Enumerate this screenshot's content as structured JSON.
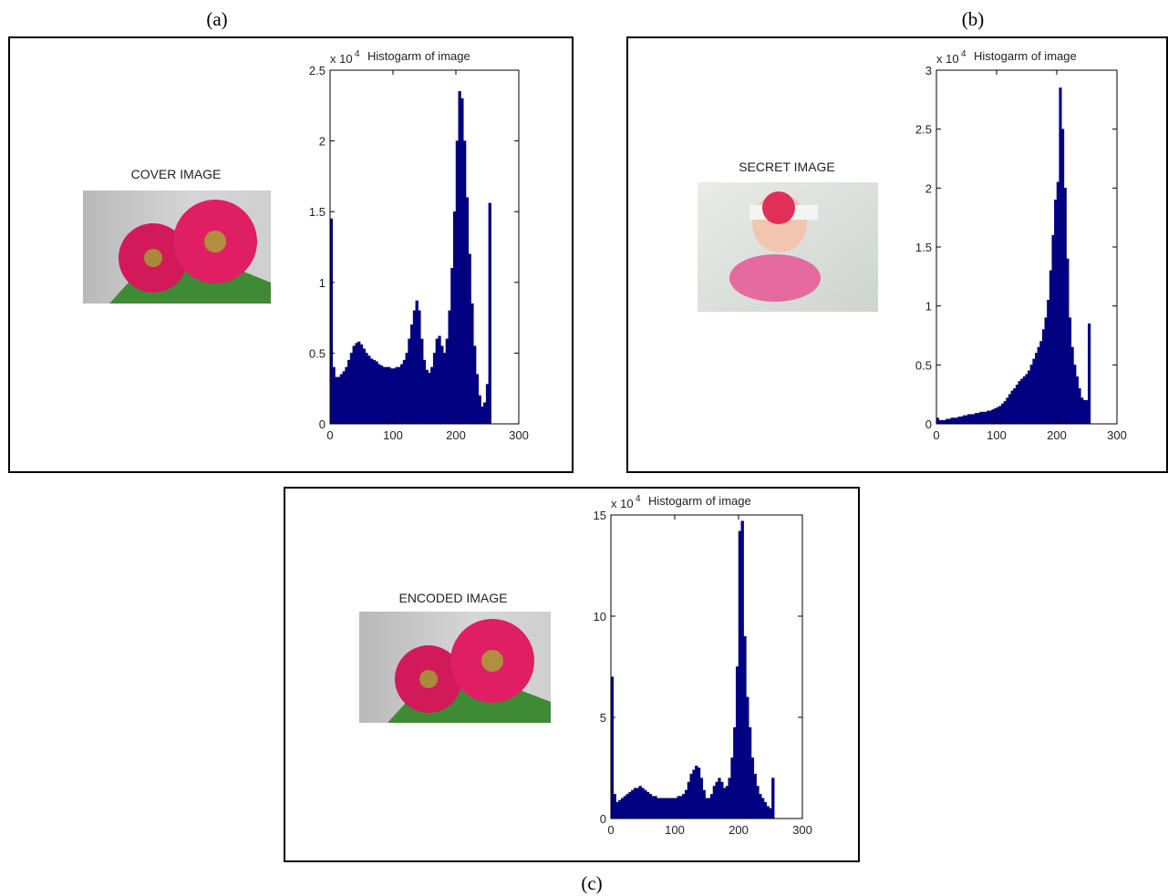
{
  "chart_data": [
    {
      "type": "histogram",
      "panel_label": "(a)",
      "image_caption": "COVER IMAGE",
      "title": "Histogarm of image",
      "y_multiplier": "x 10",
      "y_exponent": "4",
      "color": "#000080",
      "bins": [
        0,
        4,
        8,
        12,
        16,
        20,
        24,
        28,
        32,
        36,
        40,
        44,
        48,
        52,
        56,
        60,
        64,
        68,
        72,
        76,
        80,
        84,
        88,
        92,
        96,
        100,
        104,
        108,
        112,
        116,
        120,
        124,
        128,
        132,
        136,
        140,
        144,
        148,
        152,
        156,
        160,
        164,
        168,
        172,
        176,
        180,
        184,
        188,
        192,
        196,
        200,
        204,
        208,
        212,
        216,
        220,
        224,
        228,
        232,
        236,
        240,
        244,
        248,
        252,
        256
      ],
      "values": [
        1.45,
        0.4,
        0.33,
        0.33,
        0.35,
        0.37,
        0.4,
        0.45,
        0.5,
        0.55,
        0.57,
        0.58,
        0.56,
        0.53,
        0.5,
        0.48,
        0.46,
        0.45,
        0.44,
        0.42,
        0.41,
        0.4,
        0.4,
        0.4,
        0.39,
        0.39,
        0.4,
        0.4,
        0.42,
        0.45,
        0.5,
        0.6,
        0.7,
        0.8,
        0.87,
        0.8,
        0.6,
        0.45,
        0.38,
        0.36,
        0.4,
        0.5,
        0.6,
        0.62,
        0.55,
        0.5,
        0.6,
        0.8,
        1.1,
        1.5,
        2.0,
        2.35,
        2.3,
        2.0,
        1.6,
        1.2,
        0.85,
        0.55,
        0.35,
        0.2,
        0.12,
        0.15,
        0.28,
        1.56
      ],
      "xlim": [
        0,
        300
      ],
      "ylim": [
        0,
        2.5
      ],
      "xticks": [
        0,
        100,
        200,
        300
      ],
      "yticks": [
        0,
        0.5,
        1,
        1.5,
        2,
        2.5
      ]
    },
    {
      "type": "histogram",
      "panel_label": "(b)",
      "image_caption": "SECRET IMAGE",
      "title": "Histogarm of image",
      "y_multiplier": "x 10",
      "y_exponent": "4",
      "color": "#000080",
      "bins": [
        0,
        4,
        8,
        12,
        16,
        20,
        24,
        28,
        32,
        36,
        40,
        44,
        48,
        52,
        56,
        60,
        64,
        68,
        72,
        76,
        80,
        84,
        88,
        92,
        96,
        100,
        104,
        108,
        112,
        116,
        120,
        124,
        128,
        132,
        136,
        140,
        144,
        148,
        152,
        156,
        160,
        164,
        168,
        172,
        176,
        180,
        184,
        188,
        192,
        196,
        200,
        204,
        208,
        212,
        216,
        220,
        224,
        228,
        232,
        236,
        240,
        244,
        248,
        252,
        256
      ],
      "values": [
        0.05,
        0.03,
        0.03,
        0.03,
        0.04,
        0.04,
        0.05,
        0.05,
        0.05,
        0.06,
        0.06,
        0.07,
        0.07,
        0.08,
        0.08,
        0.08,
        0.09,
        0.09,
        0.1,
        0.1,
        0.1,
        0.11,
        0.11,
        0.12,
        0.13,
        0.14,
        0.15,
        0.17,
        0.19,
        0.22,
        0.25,
        0.28,
        0.3,
        0.33,
        0.36,
        0.38,
        0.4,
        0.42,
        0.45,
        0.5,
        0.55,
        0.6,
        0.65,
        0.7,
        0.8,
        0.9,
        1.05,
        1.3,
        1.6,
        1.9,
        2.05,
        2.85,
        2.5,
        2.0,
        1.4,
        0.9,
        0.65,
        0.5,
        0.4,
        0.3,
        0.22,
        0.2,
        0.2,
        0.85
      ],
      "xlim": [
        0,
        300
      ],
      "ylim": [
        0,
        3
      ],
      "xticks": [
        0,
        100,
        200,
        300
      ],
      "yticks": [
        0,
        0.5,
        1,
        1.5,
        2,
        2.5,
        3
      ]
    },
    {
      "type": "histogram",
      "panel_label": "(c)",
      "image_caption": "ENCODED IMAGE",
      "title": "Histogarm of image",
      "y_multiplier": "x 10",
      "y_exponent": "4",
      "color": "#000080",
      "bins": [
        0,
        4,
        8,
        12,
        16,
        20,
        24,
        28,
        32,
        36,
        40,
        44,
        48,
        52,
        56,
        60,
        64,
        68,
        72,
        76,
        80,
        84,
        88,
        92,
        96,
        100,
        104,
        108,
        112,
        116,
        120,
        124,
        128,
        132,
        136,
        140,
        144,
        148,
        152,
        156,
        160,
        164,
        168,
        172,
        176,
        180,
        184,
        188,
        192,
        196,
        200,
        204,
        208,
        212,
        216,
        220,
        224,
        228,
        232,
        236,
        240,
        244,
        248,
        252,
        256
      ],
      "values": [
        7,
        1.2,
        0.8,
        0.9,
        1.0,
        1.1,
        1.2,
        1.3,
        1.4,
        1.5,
        1.5,
        1.6,
        1.5,
        1.4,
        1.3,
        1.2,
        1.1,
        1.1,
        1.0,
        1.0,
        1.0,
        1.0,
        1.0,
        1.0,
        1.0,
        1.0,
        1.1,
        1.1,
        1.2,
        1.4,
        1.8,
        2.2,
        2.4,
        2.6,
        2.5,
        2.0,
        1.4,
        1.0,
        1.0,
        1.2,
        1.6,
        1.8,
        2.0,
        1.8,
        1.5,
        1.6,
        2.0,
        3.0,
        4.5,
        7.5,
        14.2,
        14.7,
        9,
        6,
        4.5,
        3,
        2.2,
        1.6,
        1.2,
        1.0,
        0.8,
        0.6,
        0.5,
        2.0
      ],
      "xlim": [
        0,
        300
      ],
      "ylim": [
        0,
        15
      ],
      "xticks": [
        0,
        100,
        200,
        300
      ],
      "yticks": [
        0,
        5,
        10,
        15
      ]
    }
  ]
}
